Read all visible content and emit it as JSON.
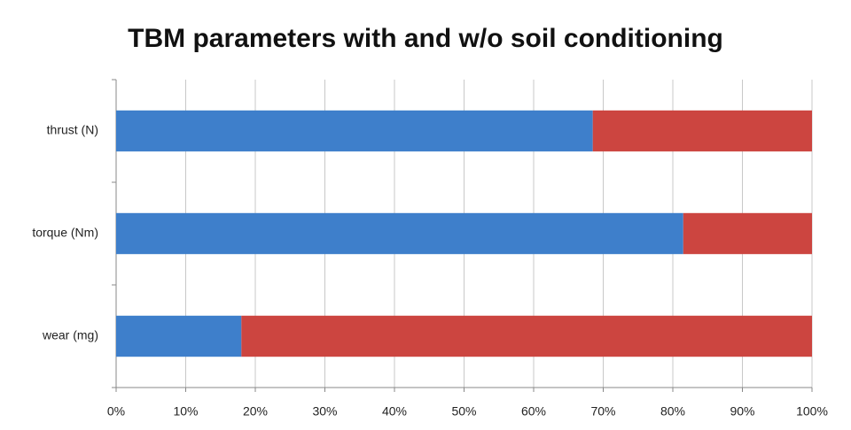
{
  "chart_data": {
    "type": "stacked-bar-horizontal",
    "title": "TBM parameters with and w/o soil conditioning",
    "categories": [
      "thrust (N)",
      "torque (Nm)",
      "wear (mg)"
    ],
    "series": [
      {
        "color": "#3e7fcb",
        "values": [
          68.5,
          81.5,
          18
        ]
      },
      {
        "color": "#cc4540",
        "values": [
          31.5,
          18.5,
          82
        ]
      }
    ],
    "xlim": [
      0,
      100
    ],
    "xticks": [
      {
        "value": 0,
        "label": "0%"
      },
      {
        "value": 10,
        "label": "10%"
      },
      {
        "value": 20,
        "label": "20%"
      },
      {
        "value": 30,
        "label": "30%"
      },
      {
        "value": 40,
        "label": "40%"
      },
      {
        "value": 50,
        "label": "50%"
      },
      {
        "value": 60,
        "label": "60%"
      },
      {
        "value": 70,
        "label": "70%"
      },
      {
        "value": 80,
        "label": "80%"
      },
      {
        "value": 90,
        "label": "90%"
      },
      {
        "value": 100,
        "label": "100%"
      }
    ],
    "grid": true
  }
}
